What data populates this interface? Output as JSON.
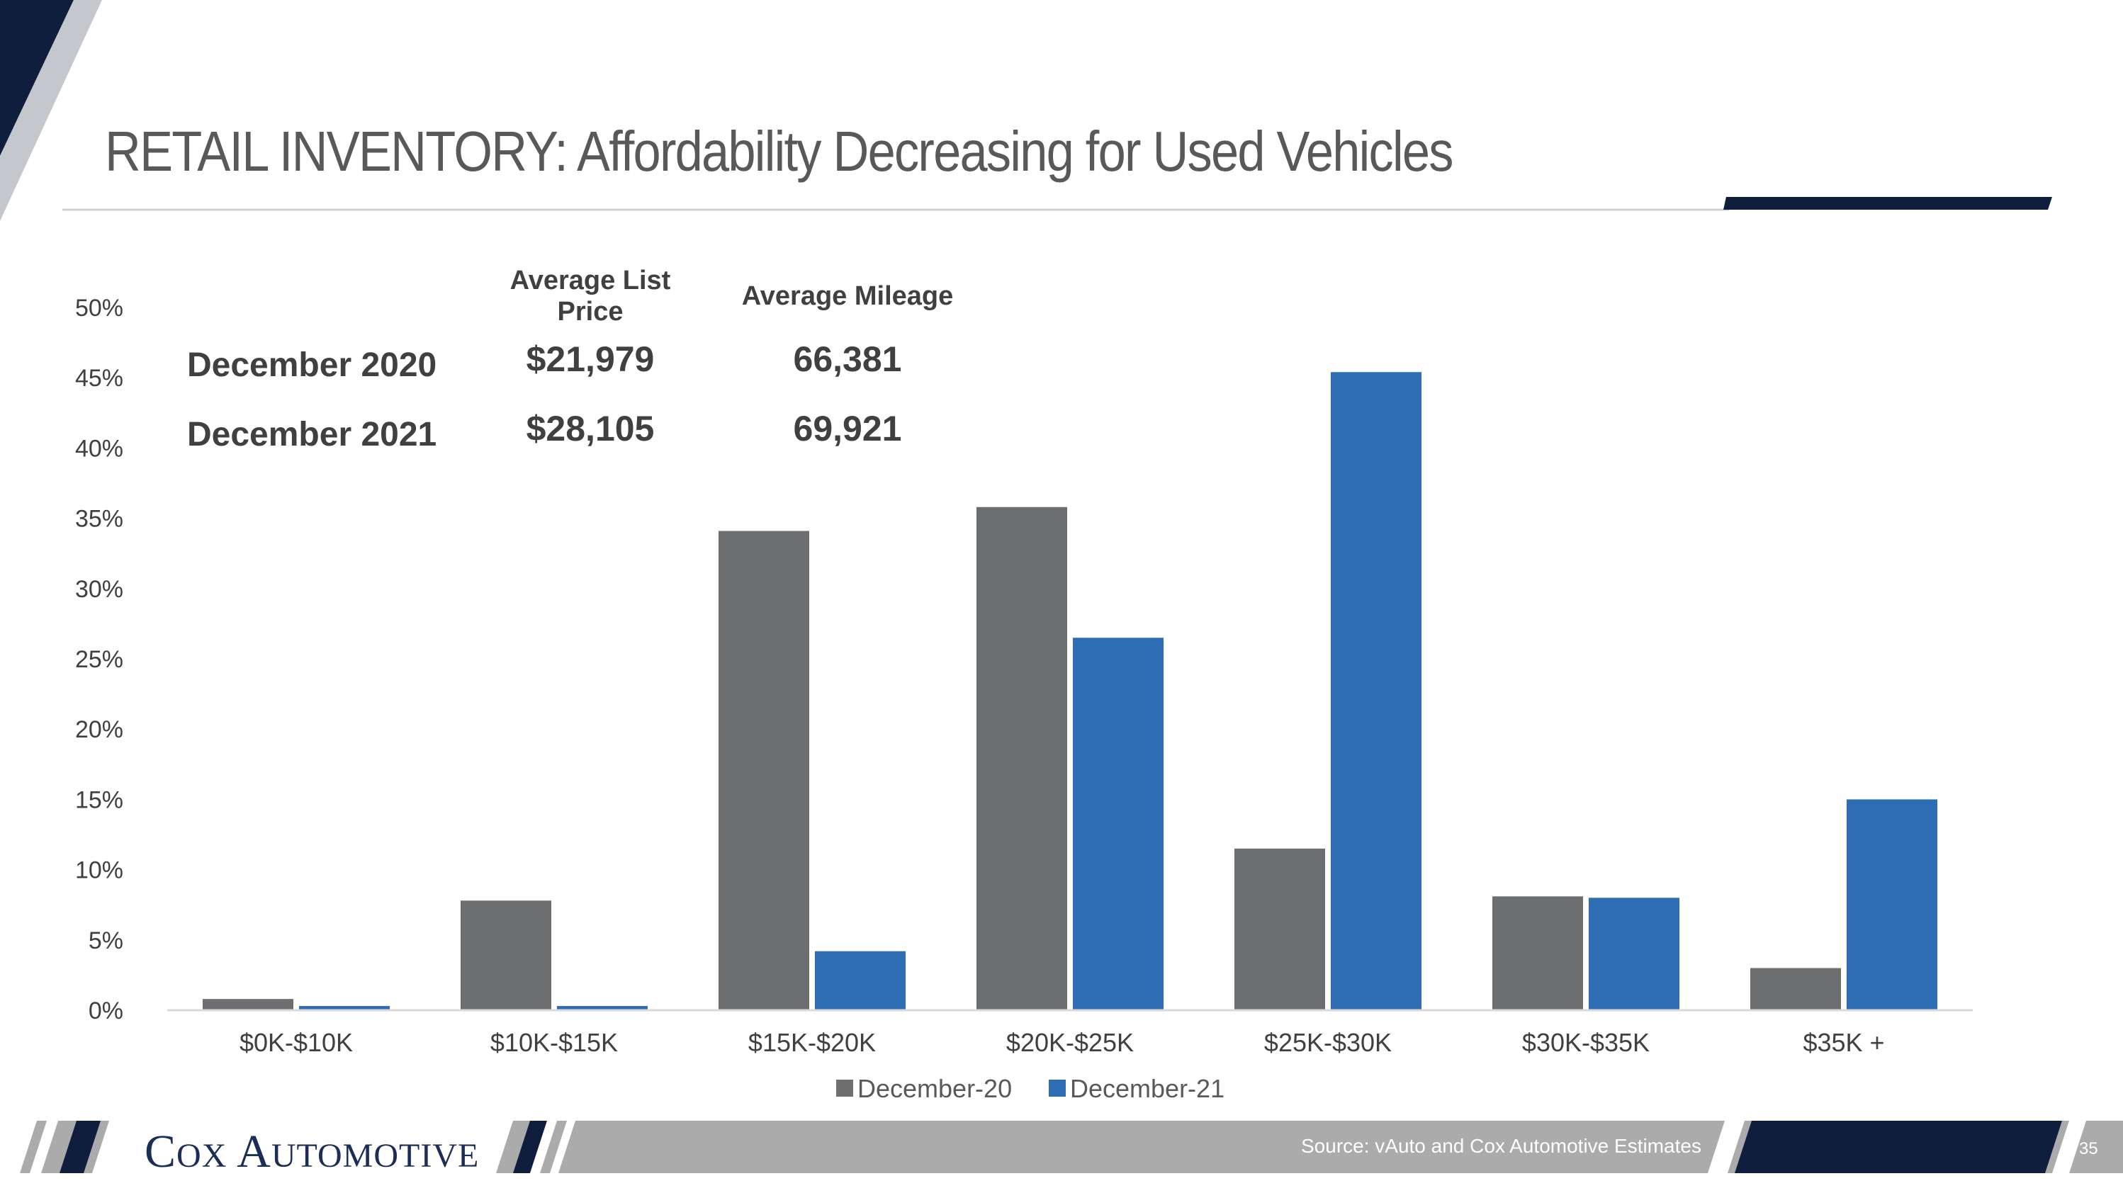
{
  "slide": {
    "title": "RETAIL INVENTORY: Affordability Decreasing for Used Vehicles",
    "logo": {
      "first": "C",
      "first_small": "OX",
      "second": "A",
      "second_small": "UTOMOTIVE"
    },
    "source": "Source: vAuto and Cox Automotive Estimates",
    "page_number": "35",
    "colors": {
      "navy": "#0f1e3d",
      "gray_band": "#ababab",
      "title": "#595959"
    }
  },
  "summary_table": {
    "headers": {
      "price_line1": "Average List",
      "price_line2": "Price",
      "mileage": "Average Mileage"
    },
    "rows": [
      {
        "label": "December 2020",
        "price": "$21,979",
        "mileage": "66,381"
      },
      {
        "label": "December 2021",
        "price": "$28,105",
        "mileage": "69,921"
      }
    ]
  },
  "chart_data": {
    "type": "bar",
    "categories": [
      "$0K-$10K",
      "$10K-$15K",
      "$15K-$20K",
      "$20K-$25K",
      "$25K-$30K",
      "$30K-$35K",
      "$35K +"
    ],
    "series": [
      {
        "name": "December-20",
        "color": "#6d6e70",
        "values": [
          0.8,
          7.8,
          34.1,
          35.8,
          11.5,
          8.1,
          3.0
        ]
      },
      {
        "name": "December-21",
        "color": "#2e6db4",
        "values": [
          0.3,
          0.3,
          4.2,
          26.5,
          45.4,
          8.0,
          15.0
        ]
      }
    ],
    "ylim": [
      0,
      50
    ],
    "yticks": [
      0,
      5,
      10,
      15,
      20,
      25,
      30,
      35,
      40,
      45,
      50
    ],
    "ytick_labels": [
      "0%",
      "5%",
      "10%",
      "15%",
      "20%",
      "25%",
      "30%",
      "35%",
      "40%",
      "45%",
      "50%"
    ],
    "legend_position": "bottom",
    "grid": false
  }
}
